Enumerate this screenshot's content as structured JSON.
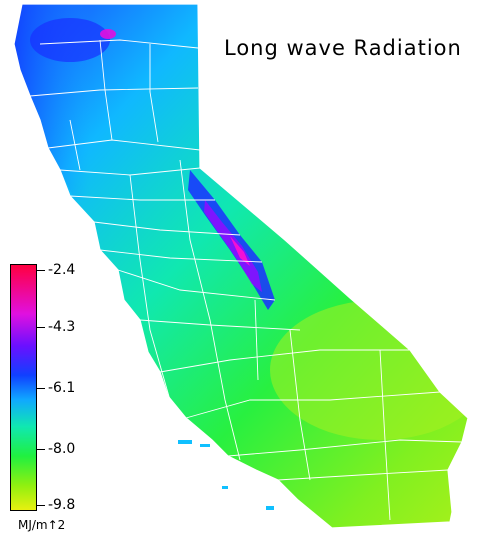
{
  "map": {
    "title": "Long wave Radiation",
    "region": "California",
    "legend": {
      "ticks": [
        "-2.4",
        "-4.3",
        "-6.1",
        "-8.0",
        "-9.8"
      ],
      "units": "MJ/m↑2"
    },
    "colors": {
      "high": "#ff0040",
      "mid_high": "#1040ff",
      "mid": "#10e8b0",
      "low": "#e8f010",
      "county_lines": "#ffffff"
    }
  }
}
